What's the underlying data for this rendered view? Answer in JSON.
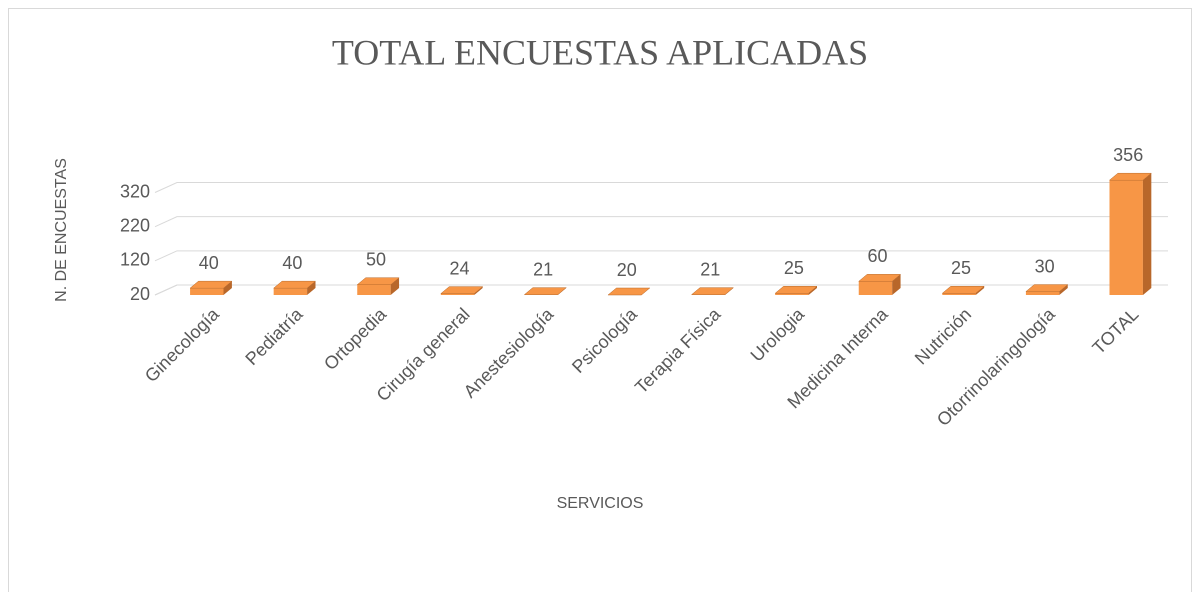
{
  "chart_data": {
    "type": "bar3d",
    "title": "TOTAL ENCUESTAS APLICADAS",
    "x_label": "SERVICIOS",
    "y_label": "N. DE ENCUESTAS",
    "categories": [
      "Ginecología",
      "Pediatría",
      "Ortopedia",
      "Cirugía general",
      "Anestesiología",
      "Psicología",
      "Terapia Física",
      "Urologia",
      "Medicina Interna",
      "Nutrición",
      "Otorrinolaringología",
      "TOTAL"
    ],
    "values": [
      40,
      40,
      50,
      24,
      21,
      20,
      21,
      25,
      60,
      25,
      30,
      356
    ],
    "color": "#f79646",
    "ylim": [
      20,
      380
    ],
    "yticks": [
      20,
      120,
      220,
      320
    ],
    "grid": true
  }
}
